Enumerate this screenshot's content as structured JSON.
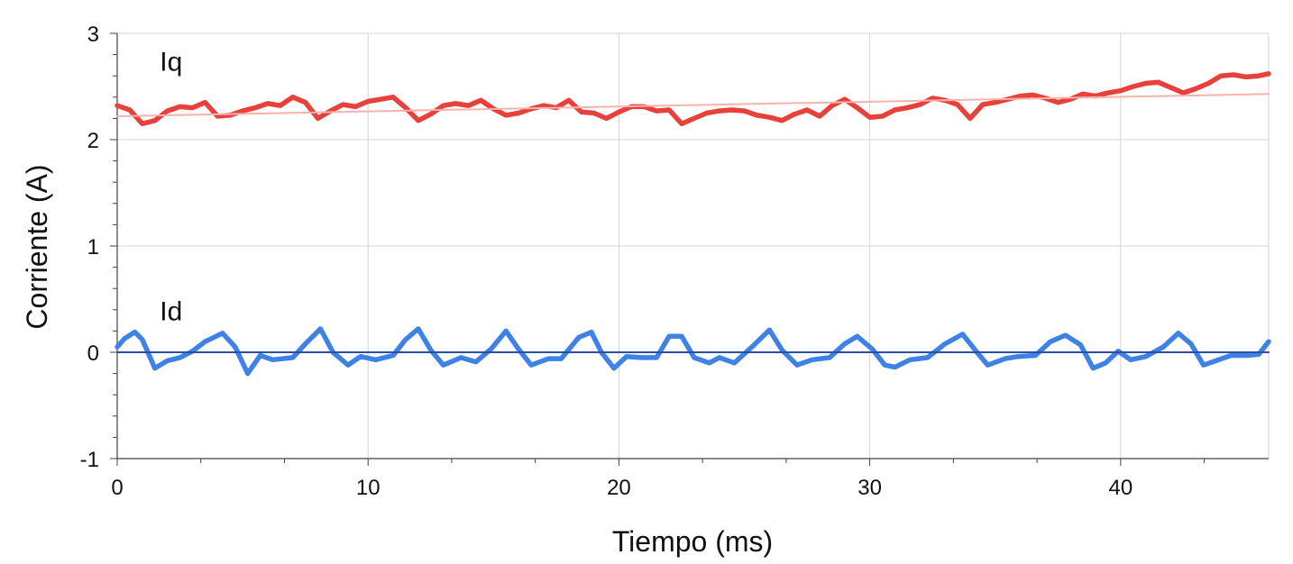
{
  "chart_data": {
    "type": "line",
    "title": "",
    "xlabel": "Tiempo (ms)",
    "ylabel": "Corriente (A)",
    "xlim": [
      0,
      45.9
    ],
    "ylim": [
      -1,
      3
    ],
    "xticks": [
      0,
      10,
      20,
      30,
      40
    ],
    "yticks": [
      -1,
      0,
      1,
      2,
      3
    ],
    "grid": true,
    "legend": "none",
    "series": [
      {
        "name": "Iq",
        "color": "#e8403a",
        "style": "solid",
        "x": [
          0,
          0.5,
          1.0,
          1.5,
          2.0,
          2.5,
          3.0,
          3.5,
          4.0,
          4.5,
          5.0,
          5.5,
          6.0,
          6.5,
          7.0,
          7.5,
          8.0,
          8.5,
          9.0,
          9.5,
          10.0,
          10.5,
          11.0,
          11.5,
          12.0,
          12.5,
          13.0,
          13.5,
          14.0,
          14.5,
          15.0,
          15.5,
          16.0,
          16.5,
          17.0,
          17.5,
          18.0,
          18.5,
          19.0,
          19.5,
          20.0,
          20.5,
          21.0,
          21.5,
          22.0,
          22.5,
          23.0,
          23.5,
          24.0,
          24.5,
          25.0,
          25.5,
          26.0,
          26.5,
          27.0,
          27.5,
          28.0,
          28.5,
          29.0,
          29.5,
          30.0,
          30.5,
          31.0,
          31.5,
          32.0,
          32.5,
          33.0,
          33.5,
          34.0,
          34.5,
          35.0,
          35.5,
          36.0,
          36.5,
          37.0,
          37.5,
          38.0,
          38.5,
          39.0,
          39.5,
          40.0,
          40.5,
          41.0,
          41.5,
          42.0,
          42.5,
          43.0,
          43.5,
          44.0,
          44.5,
          45.0,
          45.5,
          45.9
        ],
        "values": [
          2.32,
          2.28,
          2.15,
          2.18,
          2.27,
          2.31,
          2.3,
          2.35,
          2.22,
          2.23,
          2.27,
          2.3,
          2.34,
          2.32,
          2.4,
          2.35,
          2.2,
          2.27,
          2.33,
          2.31,
          2.36,
          2.38,
          2.4,
          2.3,
          2.18,
          2.24,
          2.32,
          2.34,
          2.32,
          2.37,
          2.29,
          2.23,
          2.25,
          2.29,
          2.32,
          2.3,
          2.37,
          2.26,
          2.25,
          2.2,
          2.26,
          2.31,
          2.31,
          2.27,
          2.28,
          2.15,
          2.2,
          2.25,
          2.27,
          2.28,
          2.27,
          2.23,
          2.21,
          2.18,
          2.24,
          2.28,
          2.22,
          2.32,
          2.38,
          2.3,
          2.21,
          2.22,
          2.28,
          2.3,
          2.33,
          2.39,
          2.37,
          2.33,
          2.2,
          2.33,
          2.35,
          2.38,
          2.41,
          2.42,
          2.39,
          2.35,
          2.38,
          2.43,
          2.41,
          2.44,
          2.46,
          2.5,
          2.53,
          2.54,
          2.49,
          2.44,
          2.48,
          2.53,
          2.6,
          2.61,
          2.59,
          2.6,
          2.62
        ]
      },
      {
        "name": "Iq trend",
        "color": "#f5b3ac",
        "style": "thin",
        "x": [
          0,
          45.9
        ],
        "values": [
          2.22,
          2.43
        ]
      },
      {
        "name": "Id",
        "color": "#3f82e6",
        "style": "solid",
        "x": [
          0,
          0.3,
          0.7,
          1.0,
          1.5,
          2.0,
          2.5,
          3.0,
          3.5,
          4.2,
          4.7,
          5.2,
          5.7,
          6.2,
          7.0,
          7.5,
          8.1,
          8.6,
          9.2,
          9.7,
          10.3,
          11.0,
          11.5,
          12.0,
          12.5,
          13.0,
          13.7,
          14.3,
          14.9,
          15.5,
          16.0,
          16.5,
          17.2,
          17.7,
          18.4,
          18.9,
          19.3,
          19.8,
          20.3,
          20.9,
          21.5,
          22.0,
          22.5,
          23.0,
          23.6,
          24.0,
          24.6,
          25.3,
          26.0,
          26.5,
          27.1,
          27.7,
          28.4,
          29.0,
          29.5,
          30.1,
          30.6,
          31.0,
          31.6,
          32.3,
          33.0,
          33.7,
          34.2,
          34.7,
          35.4,
          35.9,
          36.6,
          37.2,
          37.8,
          38.4,
          38.9,
          39.4,
          39.9,
          40.4,
          41.0,
          41.7,
          42.3,
          42.8,
          43.3,
          43.8,
          44.4,
          45.0,
          45.5,
          45.9
        ],
        "values": [
          0.05,
          0.13,
          0.19,
          0.12,
          -0.15,
          -0.08,
          -0.05,
          0.01,
          0.1,
          0.18,
          0.05,
          -0.2,
          -0.03,
          -0.07,
          -0.05,
          0.08,
          0.22,
          0.0,
          -0.12,
          -0.04,
          -0.07,
          -0.03,
          0.12,
          0.22,
          0.02,
          -0.12,
          -0.05,
          -0.09,
          0.03,
          0.2,
          0.03,
          -0.12,
          -0.06,
          -0.06,
          0.14,
          0.19,
          0.0,
          -0.15,
          -0.04,
          -0.05,
          -0.05,
          0.15,
          0.15,
          -0.05,
          -0.1,
          -0.05,
          -0.1,
          0.05,
          0.21,
          0.02,
          -0.12,
          -0.07,
          -0.05,
          0.08,
          0.15,
          0.03,
          -0.12,
          -0.14,
          -0.07,
          -0.05,
          0.08,
          0.17,
          0.02,
          -0.12,
          -0.06,
          -0.04,
          -0.03,
          0.1,
          0.16,
          0.07,
          -0.15,
          -0.1,
          0.01,
          -0.07,
          -0.04,
          0.05,
          0.18,
          0.08,
          -0.12,
          -0.08,
          -0.03,
          -0.03,
          -0.02,
          0.1
        ]
      },
      {
        "name": "Id trend",
        "color": "#2a4fa8",
        "style": "thin",
        "x": [
          0,
          45.9
        ],
        "values": [
          0.0,
          0.0
        ]
      }
    ],
    "annotations": [
      {
        "text": "Iq",
        "x": 1.7,
        "y": 2.65
      },
      {
        "text": "Id",
        "x": 1.7,
        "y": 0.3
      }
    ]
  }
}
